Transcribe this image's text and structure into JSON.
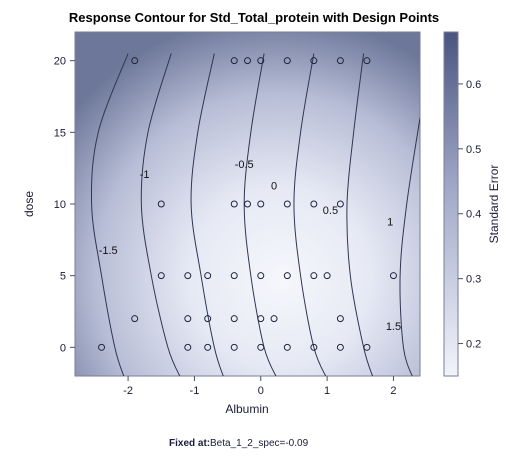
{
  "chart_data": {
    "type": "contour",
    "title": "Response Contour for Std_Total_protein with Design Points",
    "xlabel": "Albumin",
    "ylabel": "dose",
    "xlim": [
      -2.8,
      2.4
    ],
    "ylim": [
      -2.0,
      22.0
    ],
    "x_ticks": [
      -2,
      -1,
      0,
      1,
      2
    ],
    "y_ticks": [
      0,
      5,
      10,
      15,
      20
    ],
    "contours": [
      {
        "level": -1.5,
        "label": "-1.5",
        "x_at_y": [
          [
            -2.0,
            20.5
          ],
          [
            -2.45,
            15.0
          ],
          [
            -2.55,
            10.0
          ],
          [
            -2.4,
            5.0
          ],
          [
            -2.2,
            0.0
          ],
          [
            -2.05,
            -2.2
          ]
        ],
        "label_x": -2.3,
        "label_y": 6.5
      },
      {
        "level": -1,
        "label": "-1",
        "x_at_y": [
          [
            -1.35,
            20.5
          ],
          [
            -1.7,
            15.0
          ],
          [
            -1.8,
            10.0
          ],
          [
            -1.65,
            5.0
          ],
          [
            -1.4,
            0.0
          ],
          [
            -1.2,
            -2.2
          ]
        ],
        "label_x": -1.75,
        "label_y": 11.8
      },
      {
        "level": -0.5,
        "label": "-0.5",
        "x_at_y": [
          [
            -0.7,
            20.5
          ],
          [
            -0.95,
            15.0
          ],
          [
            -1.05,
            10.0
          ],
          [
            -0.9,
            5.0
          ],
          [
            -0.7,
            0.0
          ],
          [
            -0.55,
            -2.2
          ]
        ],
        "label_x": -0.25,
        "label_y": 12.5
      },
      {
        "level": 0,
        "label": "0",
        "x_at_y": [
          [
            0.05,
            20.5
          ],
          [
            -0.15,
            15.0
          ],
          [
            -0.25,
            10.0
          ],
          [
            -0.15,
            5.0
          ],
          [
            0.05,
            0.0
          ],
          [
            0.25,
            -2.2
          ]
        ],
        "label_x": 0.2,
        "label_y": 11.0
      },
      {
        "level": 0.5,
        "label": "0.5",
        "x_at_y": [
          [
            0.8,
            20.5
          ],
          [
            0.6,
            15.0
          ],
          [
            0.5,
            10.0
          ],
          [
            0.6,
            5.0
          ],
          [
            0.8,
            0.0
          ],
          [
            1.0,
            -2.2
          ]
        ],
        "label_x": 1.05,
        "label_y": 9.3
      },
      {
        "level": 1,
        "label": "1",
        "x_at_y": [
          [
            1.55,
            20.5
          ],
          [
            1.4,
            15.0
          ],
          [
            1.3,
            10.0
          ],
          [
            1.35,
            5.0
          ],
          [
            1.55,
            0.0
          ],
          [
            1.7,
            -2.2
          ]
        ],
        "label_x": 1.95,
        "label_y": 8.5
      },
      {
        "level": 1.5,
        "label": "1.5",
        "x_at_y": [
          [
            2.4,
            16.0
          ],
          [
            2.2,
            10.0
          ],
          [
            2.1,
            5.0
          ],
          [
            2.15,
            0.0
          ],
          [
            2.3,
            -2.2
          ]
        ],
        "label_x": 2.0,
        "label_y": 1.2
      }
    ],
    "design_points": [
      {
        "x": -1.9,
        "y": 20
      },
      {
        "x": -0.4,
        "y": 20
      },
      {
        "x": -0.2,
        "y": 20
      },
      {
        "x": 0.0,
        "y": 20
      },
      {
        "x": 0.4,
        "y": 20
      },
      {
        "x": 0.8,
        "y": 20
      },
      {
        "x": 1.2,
        "y": 20
      },
      {
        "x": 1.6,
        "y": 20
      },
      {
        "x": -1.5,
        "y": 10
      },
      {
        "x": -0.4,
        "y": 10
      },
      {
        "x": -0.2,
        "y": 10
      },
      {
        "x": 0.0,
        "y": 10
      },
      {
        "x": 0.4,
        "y": 10
      },
      {
        "x": 0.8,
        "y": 10
      },
      {
        "x": 1.2,
        "y": 10
      },
      {
        "x": -2.4,
        "y": 0
      },
      {
        "x": -1.9,
        "y": 2
      },
      {
        "x": -1.5,
        "y": 5
      },
      {
        "x": -1.1,
        "y": 5
      },
      {
        "x": -1.1,
        "y": 2
      },
      {
        "x": -1.1,
        "y": 0
      },
      {
        "x": -0.8,
        "y": 5
      },
      {
        "x": -0.8,
        "y": 2
      },
      {
        "x": -0.8,
        "y": 0
      },
      {
        "x": -0.4,
        "y": 5
      },
      {
        "x": -0.4,
        "y": 2
      },
      {
        "x": -0.4,
        "y": 0
      },
      {
        "x": 0.0,
        "y": 5
      },
      {
        "x": 0.0,
        "y": 2
      },
      {
        "x": 0.0,
        "y": 0
      },
      {
        "x": 0.2,
        "y": 2
      },
      {
        "x": 0.4,
        "y": 5
      },
      {
        "x": 0.4,
        "y": 0
      },
      {
        "x": 0.8,
        "y": 5
      },
      {
        "x": 0.8,
        "y": 0
      },
      {
        "x": 1.0,
        "y": 5
      },
      {
        "x": 1.2,
        "y": 2
      },
      {
        "x": 1.2,
        "y": 0
      },
      {
        "x": 1.6,
        "y": 0
      },
      {
        "x": 2.0,
        "y": 5
      }
    ],
    "colorbar": {
      "label": "Standard Error",
      "min": 0.15,
      "max": 0.68,
      "ticks": [
        0.2,
        0.3,
        0.4,
        0.5,
        0.6
      ],
      "tick_labels": [
        "0.2",
        "0.3",
        "0.4",
        "0.5",
        "0.6"
      ],
      "color_low": "#f2f4fb",
      "color_high": "#4a5580"
    },
    "footer_label": "Fixed at:",
    "footer_value": "Beta_1_2_spec=-0.09"
  }
}
